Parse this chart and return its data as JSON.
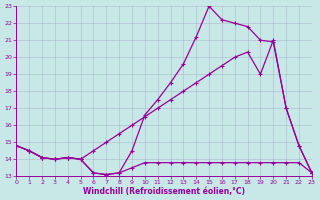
{
  "xlabel": "Windchill (Refroidissement éolien,°C)",
  "bg_color": "#c8e8e8",
  "line_color": "#990099",
  "grid_color": "#aab8cc",
  "xmin": 0,
  "xmax": 23,
  "ymin": 13,
  "ymax": 23,
  "line1_x": [
    0,
    1,
    2,
    3,
    4,
    5,
    6,
    7,
    8,
    9,
    10,
    11,
    12,
    13,
    14,
    15,
    16,
    17,
    18,
    19,
    20,
    21,
    22,
    23
  ],
  "line1_y": [
    14.8,
    14.5,
    14.1,
    14.0,
    14.1,
    14.0,
    13.2,
    13.1,
    13.2,
    14.5,
    16.6,
    17.5,
    18.5,
    19.6,
    21.2,
    23.0,
    22.2,
    22.0,
    21.8,
    21.0,
    20.9,
    17.0,
    14.8,
    13.2
  ],
  "line2_x": [
    0,
    1,
    2,
    3,
    4,
    5,
    6,
    7,
    8,
    9,
    10,
    11,
    12,
    13,
    14,
    15,
    16,
    17,
    18,
    19,
    20,
    21,
    22,
    23
  ],
  "line2_y": [
    14.8,
    14.5,
    14.1,
    14.0,
    14.1,
    14.0,
    14.5,
    15.0,
    15.5,
    16.0,
    16.5,
    17.0,
    17.5,
    18.0,
    18.5,
    19.0,
    19.5,
    20.0,
    20.3,
    19.0,
    21.0,
    17.0,
    14.8,
    13.2
  ],
  "line3_x": [
    0,
    1,
    2,
    3,
    4,
    5,
    6,
    7,
    8,
    9,
    10,
    11,
    12,
    13,
    14,
    15,
    16,
    17,
    18,
    19,
    20,
    21,
    22,
    23
  ],
  "line3_y": [
    14.8,
    14.5,
    14.1,
    14.0,
    14.1,
    14.0,
    13.2,
    13.1,
    13.2,
    13.5,
    13.8,
    13.8,
    13.8,
    13.8,
    13.8,
    13.8,
    13.8,
    13.8,
    13.8,
    13.8,
    13.8,
    13.8,
    13.8,
    13.2
  ]
}
